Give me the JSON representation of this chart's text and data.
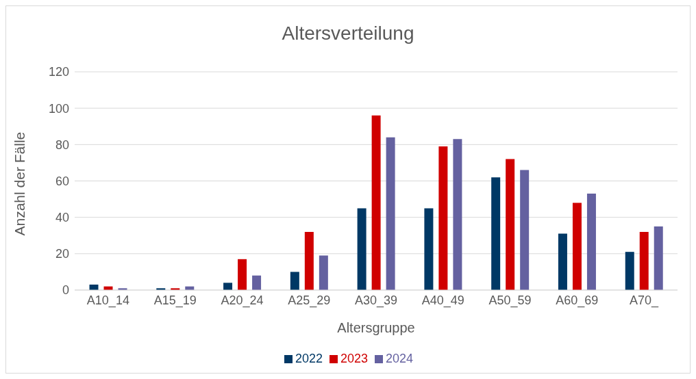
{
  "chart_data": {
    "type": "bar",
    "title": "Altersverteilung",
    "xlabel": "Altersgruppe",
    "ylabel": "Anzahl der Fälle",
    "categories": [
      "A10_14",
      "A15_19",
      "A20_24",
      "A25_29",
      "A30_39",
      "A40_49",
      "A50_59",
      "A60_69",
      "A70_"
    ],
    "series": [
      {
        "name": "2022",
        "color": "#003865",
        "values": [
          3,
          1,
          4,
          10,
          45,
          45,
          62,
          31,
          21
        ]
      },
      {
        "name": "2023",
        "color": "#d00000",
        "values": [
          2,
          1,
          17,
          32,
          96,
          79,
          72,
          48,
          32
        ]
      },
      {
        "name": "2024",
        "color": "#6461a0",
        "values": [
          1,
          2,
          8,
          19,
          84,
          83,
          66,
          53,
          35
        ]
      }
    ],
    "ylim": [
      0,
      120
    ],
    "yticks": [
      0,
      20,
      40,
      60,
      80,
      100,
      120
    ],
    "grid": "y",
    "legend": "bottom"
  }
}
